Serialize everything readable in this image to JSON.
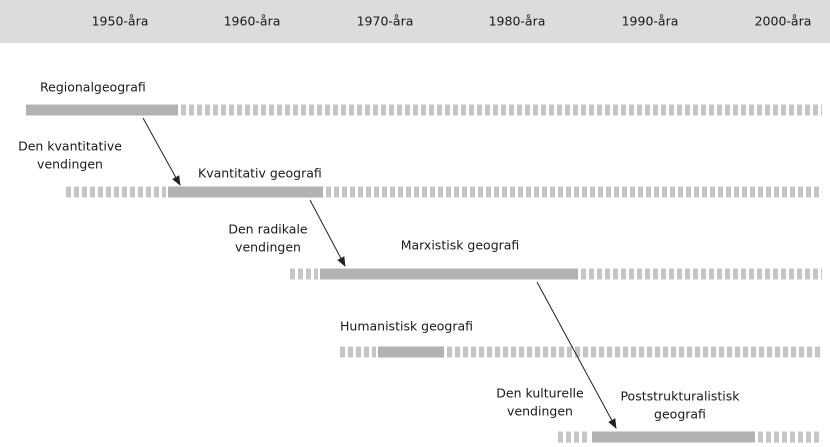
{
  "header": {
    "decades": [
      "1950-åra",
      "1960-åra",
      "1970-åra",
      "1980-åra",
      "1990-åra",
      "2000-åra"
    ]
  },
  "tracks": [
    {
      "label": [
        "Regionalgeografi"
      ]
    },
    {
      "label": [
        "Kvantitativ geografi"
      ]
    },
    {
      "label": [
        "Marxistisk geografi"
      ]
    },
    {
      "label": [
        "Humanistisk geografi"
      ]
    },
    {
      "label": [
        "Poststrukturalistisk",
        "geografi"
      ]
    }
  ],
  "turns": [
    {
      "label": [
        "Den kvantitative",
        "vendingen"
      ]
    },
    {
      "label": [
        "Den radikale",
        "vendingen"
      ]
    },
    {
      "label": [
        "Den kulturelle",
        "vendingen"
      ]
    }
  ]
}
